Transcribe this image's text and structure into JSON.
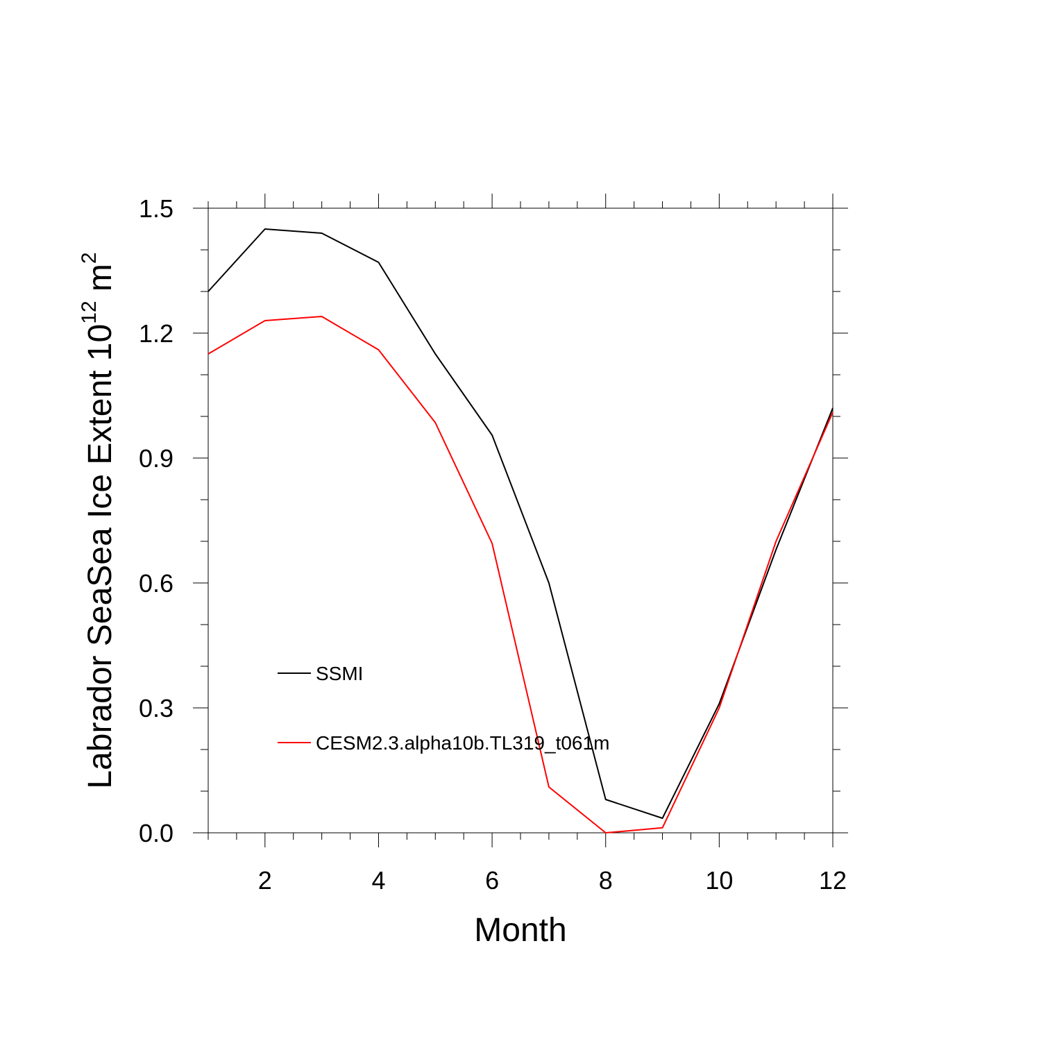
{
  "chart_data": {
    "type": "line",
    "title": "",
    "xlabel": "Month",
    "ylabel": "Labrador SeaSea Ice Extent 10",
    "ylabel_sup1": "12",
    "ylabel_unit": " m",
    "ylabel_sup2": "2",
    "xlim": [
      1,
      12
    ],
    "ylim": [
      0,
      1.5
    ],
    "xticks": [
      2,
      4,
      6,
      8,
      10,
      12
    ],
    "xtick_labels": [
      "2",
      "4",
      "6",
      "8",
      "10",
      "12"
    ],
    "yticks": [
      0,
      0.3,
      0.6,
      0.9,
      1.2,
      1.5
    ],
    "ytick_labels": [
      "0.0",
      "0.3",
      "0.6",
      "0.9",
      "1.2",
      "1.5"
    ],
    "x": [
      1,
      2,
      3,
      4,
      5,
      6,
      7,
      8,
      9,
      10,
      11,
      12
    ],
    "series": [
      {
        "name": "SSMI",
        "color": "#000000",
        "values": [
          1.3,
          1.45,
          1.44,
          1.37,
          1.15,
          0.955,
          0.6,
          0.08,
          0.035,
          0.31,
          0.68,
          1.02
        ]
      },
      {
        "name": "CESM2.3.alpha10b.TL319_t061m",
        "color": "#ff0000",
        "values": [
          1.15,
          1.23,
          1.24,
          1.16,
          0.985,
          0.695,
          0.11,
          0.0,
          0.012,
          0.3,
          0.7,
          1.01
        ]
      }
    ],
    "legend_position": "lower-left",
    "grid": false
  }
}
